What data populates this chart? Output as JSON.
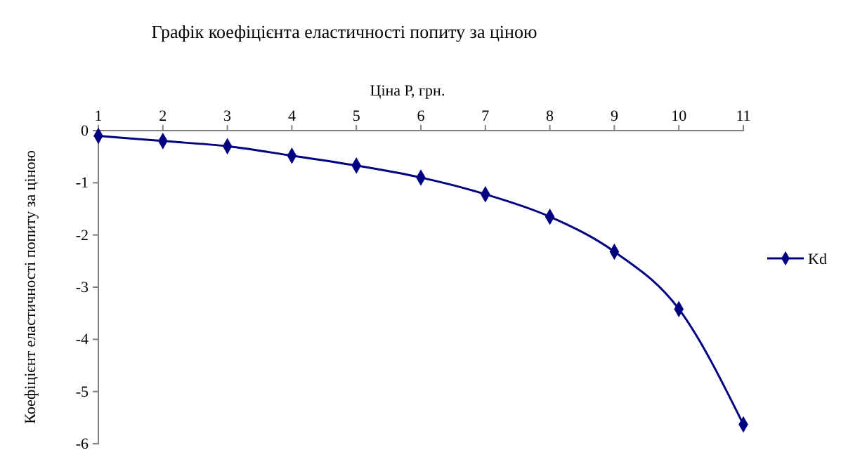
{
  "chart_data": {
    "type": "line",
    "title": "Графік коефіцієнта еластичності попиту за ціною",
    "xlabel": "Ціна Р, грн.",
    "ylabel": "Коефіцієнт еластичності попиту  за ціною",
    "x": [
      1,
      2,
      3,
      4,
      5,
      6,
      7,
      8,
      9,
      10,
      11
    ],
    "series": [
      {
        "name": "Kd",
        "color": "#000080",
        "values": [
          -0.1,
          -0.2,
          -0.3,
          -0.48,
          -0.67,
          -0.9,
          -1.22,
          -1.65,
          -2.32,
          -3.42,
          -5.63
        ]
      }
    ],
    "xlim": [
      1,
      11
    ],
    "xticks": [
      1,
      2,
      3,
      4,
      5,
      6,
      7,
      8,
      9,
      10,
      11
    ],
    "ylim": [
      -6,
      0
    ],
    "yticks": [
      -6,
      -5,
      -4,
      -3,
      -2,
      -1,
      0
    ],
    "grid": false,
    "legend": "right",
    "marker": "diamond",
    "line_style": "solid"
  }
}
